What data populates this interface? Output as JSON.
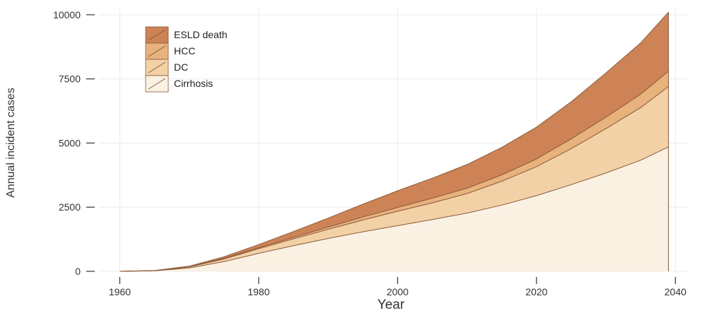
{
  "chart_data": {
    "type": "area",
    "stacked": true,
    "xlabel": "Year",
    "ylabel": "Annual incident cases",
    "xlim": [
      1957,
      2042
    ],
    "ylim": [
      0,
      10300
    ],
    "x_ticks": [
      1960,
      1980,
      2000,
      2020,
      2040
    ],
    "y_ticks": [
      0,
      2500,
      5000,
      7500,
      10000
    ],
    "x_tick_labels": [
      "1960",
      "1980",
      "2000",
      "2020",
      "2040"
    ],
    "y_tick_labels": [
      "0",
      "2500",
      "5000",
      "7500",
      "10000"
    ],
    "grid": true,
    "legend_position": "top-left",
    "x": [
      1960,
      1965,
      1970,
      1975,
      1980,
      1985,
      1990,
      1995,
      2000,
      2005,
      2010,
      2015,
      2020,
      2025,
      2030,
      2035,
      2039
    ],
    "series": [
      {
        "name": "Cirrhosis",
        "color": "#faf1e3",
        "values": [
          0,
          20,
          130,
          380,
          700,
          1000,
          1280,
          1540,
          1780,
          2020,
          2270,
          2580,
          2950,
          3380,
          3830,
          4330,
          4850
        ]
      },
      {
        "name": "DC",
        "color": "#f2d1a7",
        "values": [
          0,
          5,
          40,
          100,
          180,
          260,
          360,
          460,
          560,
          650,
          760,
          930,
          1130,
          1400,
          1730,
          2050,
          2350
        ]
      },
      {
        "name": "HCC",
        "color": "#e7b27c",
        "values": [
          0,
          2,
          10,
          25,
          40,
          60,
          85,
          115,
          150,
          180,
          210,
          250,
          300,
          380,
          450,
          520,
          600
        ]
      },
      {
        "name": "ESLD death",
        "color": "#cd8356",
        "values": [
          0,
          3,
          20,
          60,
          120,
          230,
          350,
          500,
          650,
          780,
          920,
          1070,
          1240,
          1450,
          1720,
          2000,
          2300
        ]
      }
    ]
  },
  "legend": {
    "items": [
      {
        "label": "ESLD death",
        "color": "#cd8356"
      },
      {
        "label": "HCC",
        "color": "#e7b27c"
      },
      {
        "label": "DC",
        "color": "#f2d1a7"
      },
      {
        "label": "Cirrhosis",
        "color": "#faf1e3"
      }
    ]
  },
  "styles": {
    "line_color": "#8a5a3a",
    "grid_color": "#ececec",
    "axis_color": "#333333"
  }
}
